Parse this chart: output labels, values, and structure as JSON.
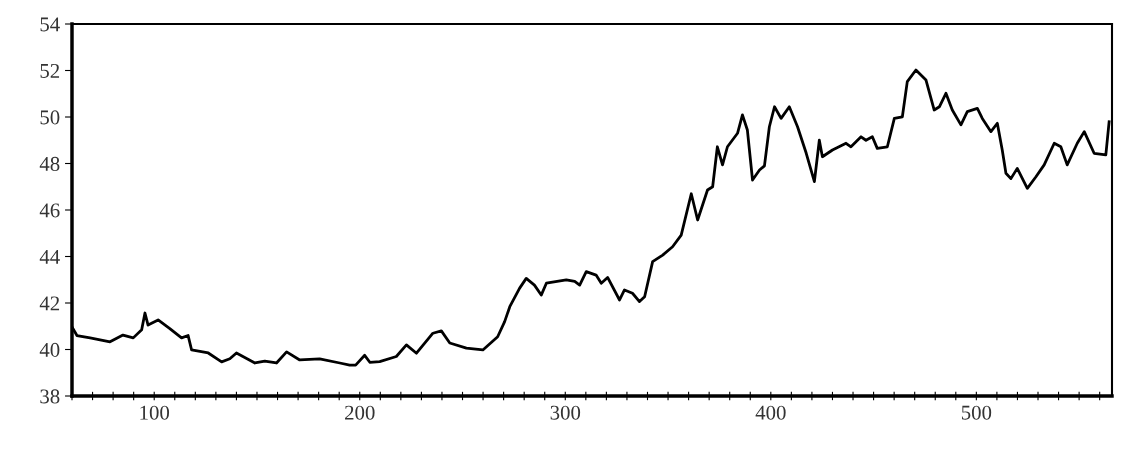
{
  "chart_data": {
    "type": "line",
    "x": [
      60,
      62.4,
      68.8,
      78.5,
      84.8,
      89.8,
      93.9,
      95.5,
      97,
      101.9,
      107.6,
      113.3,
      116.5,
      118.2,
      126.3,
      132.8,
      136.8,
      140,
      149,
      153.8,
      159.5,
      164.4,
      170.8,
      180.5,
      190.3,
      195.1,
      198,
      202.4,
      204.9,
      209.7,
      217.8,
      222.7,
      227.6,
      235.6,
      239.7,
      243.8,
      251.9,
      259.9,
      267.1,
      270.5,
      273,
      277.8,
      281,
      285,
      288.3,
      290.8,
      300.5,
      304.6,
      307,
      310.2,
      315,
      317.5,
      320.6,
      326.4,
      328.8,
      332.7,
      336.1,
      338.6,
      342.5,
      347.4,
      352.2,
      356.4,
      361.3,
      364.4,
      369.2,
      371.7,
      374,
      376.5,
      378.9,
      383.8,
      386.2,
      388.6,
      391.1,
      394.5,
      396.9,
      399.3,
      401.8,
      405,
      409,
      413,
      417.2,
      421.2,
      423.6,
      425.1,
      430,
      436.6,
      439,
      443.9,
      446.3,
      449.4,
      451.8,
      456.7,
      460.1,
      464,
      466.4,
      470.6,
      475.5,
      479.5,
      482,
      485.2,
      488.3,
      492.5,
      495.6,
      500.5,
      502.9,
      507.1,
      510.2,
      512.6,
      514.4,
      516.8,
      519.9,
      524.8,
      529,
      533,
      537.9,
      541.1,
      544.2,
      549.1,
      552.5,
      557.3,
      563,
      564.6
    ],
    "series": [
      {
        "color": "#000000",
        "values": [
          40.97,
          40.6,
          40.5,
          40.33,
          40.62,
          40.5,
          40.85,
          41.57,
          41.05,
          41.27,
          40.9,
          40.5,
          40.6,
          39.98,
          39.85,
          39.47,
          39.6,
          39.85,
          39.42,
          39.5,
          39.42,
          39.9,
          39.55,
          39.6,
          39.42,
          39.33,
          39.33,
          39.75,
          39.45,
          39.48,
          39.7,
          40.2,
          39.84,
          40.7,
          40.8,
          40.28,
          40.06,
          39.98,
          40.55,
          41.2,
          41.84,
          42.64,
          43.06,
          42.77,
          42.34,
          42.85,
          42.99,
          42.93,
          42.77,
          43.35,
          43.2,
          42.85,
          43.1,
          42.13,
          42.56,
          42.42,
          42.06,
          42.27,
          43.78,
          44.06,
          44.42,
          44.92,
          46.7,
          45.57,
          46.86,
          47.0,
          48.72,
          47.94,
          48.72,
          49.3,
          50.09,
          49.44,
          47.29,
          47.72,
          47.9,
          49.58,
          50.44,
          49.94,
          50.44,
          49.58,
          48.45,
          47.22,
          49.0,
          48.29,
          48.58,
          48.87,
          48.72,
          49.15,
          49.0,
          49.15,
          48.65,
          48.72,
          49.94,
          50.01,
          51.52,
          52.02,
          51.59,
          50.3,
          50.44,
          51.02,
          50.3,
          49.66,
          50.23,
          50.37,
          49.94,
          49.37,
          49.73,
          48.58,
          47.58,
          47.35,
          47.79,
          46.93,
          47.43,
          47.94,
          48.87,
          48.72,
          47.94,
          48.87,
          49.37,
          48.44,
          48.37,
          49.8
        ]
      }
    ],
    "xlim": [
      60,
      566
    ],
    "ylim": [
      38,
      54
    ],
    "yticks": [
      38,
      40,
      42,
      44,
      46,
      48,
      50,
      52,
      54
    ],
    "xticks": [
      {
        "value": 60,
        "label": null
      },
      {
        "value": 70,
        "label": null
      },
      {
        "value": 80,
        "label": null
      },
      {
        "value": 90,
        "label": null
      },
      100,
      {
        "value": 110,
        "label": null
      },
      {
        "value": 120,
        "label": null
      },
      {
        "value": 130,
        "label": null
      },
      {
        "value": 140,
        "label": null
      },
      {
        "value": 150,
        "label": null
      },
      {
        "value": 160,
        "label": null
      },
      {
        "value": 170,
        "label": null
      },
      {
        "value": 180,
        "label": null
      },
      {
        "value": 190,
        "label": null
      },
      200,
      {
        "value": 210,
        "label": null
      },
      {
        "value": 220,
        "label": null
      },
      {
        "value": 230,
        "label": null
      },
      {
        "value": 240,
        "label": null
      },
      {
        "value": 250,
        "label": null
      },
      {
        "value": 260,
        "label": null
      },
      {
        "value": 270,
        "label": null
      },
      {
        "value": 280,
        "label": null
      },
      {
        "value": 290,
        "label": null
      },
      300,
      {
        "value": 310,
        "label": null
      },
      {
        "value": 320,
        "label": null
      },
      {
        "value": 330,
        "label": null
      },
      {
        "value": 340,
        "label": null
      },
      {
        "value": 350,
        "label": null
      },
      {
        "value": 360,
        "label": null
      },
      {
        "value": 370,
        "label": null
      },
      {
        "value": 380,
        "label": null
      },
      {
        "value": 390,
        "label": null
      },
      400,
      {
        "value": 410,
        "label": null
      },
      {
        "value": 420,
        "label": null
      },
      {
        "value": 430,
        "label": null
      },
      {
        "value": 440,
        "label": null
      },
      {
        "value": 450,
        "label": null
      },
      {
        "value": 460,
        "label": null
      },
      {
        "value": 470,
        "label": null
      },
      {
        "value": 480,
        "label": null
      },
      {
        "value": 490,
        "label": null
      },
      500,
      {
        "value": 510,
        "label": null
      },
      {
        "value": 520,
        "label": null
      },
      {
        "value": 530,
        "label": null
      },
      {
        "value": 540,
        "label": null
      },
      {
        "value": 550,
        "label": null
      },
      {
        "value": 560,
        "label": null
      }
    ],
    "grid": false,
    "legend": false,
    "line_style": "solid"
  }
}
